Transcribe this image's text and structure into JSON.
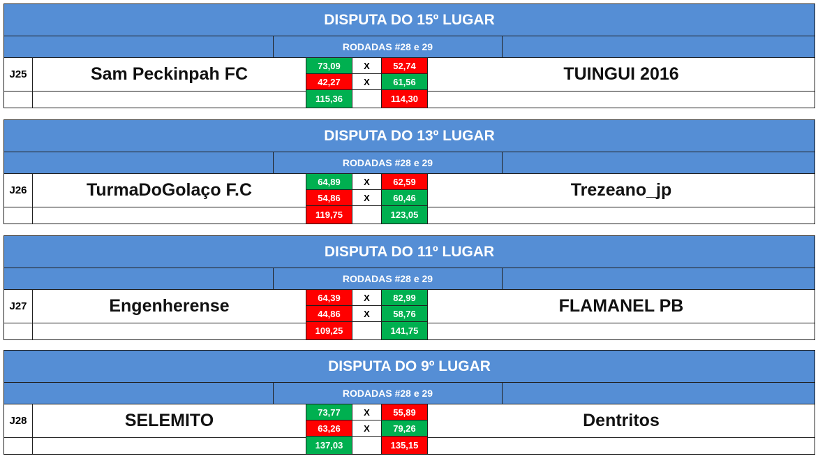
{
  "rounds_label": "RODADAS #28 e 29",
  "vs": "X",
  "colors": {
    "header": "#558ed5",
    "win": "#00b050",
    "lose": "#ff0000"
  },
  "blocks": [
    {
      "title": "DISPUTA DO 15º LUGAR",
      "code": "J25",
      "home": "Sam Peckinpah FC",
      "away": "TUINGUI 2016",
      "home_scores": [
        "73,09",
        "42,27",
        "115,36"
      ],
      "away_scores": [
        "52,74",
        "61,56",
        "114,30"
      ],
      "home_colors": [
        "green",
        "red",
        "green"
      ],
      "away_colors": [
        "red",
        "green",
        "red"
      ]
    },
    {
      "title": "DISPUTA DO 13º LUGAR",
      "code": "J26",
      "home": "TurmaDoGolaço F.C",
      "away": "Trezeano_jp",
      "home_scores": [
        "64,89",
        "54,86",
        "119,75"
      ],
      "away_scores": [
        "62,59",
        "60,46",
        "123,05"
      ],
      "home_colors": [
        "green",
        "red",
        "red"
      ],
      "away_colors": [
        "red",
        "green",
        "green"
      ]
    },
    {
      "title": "DISPUTA DO 11º LUGAR",
      "code": "J27",
      "home": "Engenherense",
      "away": "FLAMANEL PB",
      "home_scores": [
        "64,39",
        "44,86",
        "109,25"
      ],
      "away_scores": [
        "82,99",
        "58,76",
        "141,75"
      ],
      "home_colors": [
        "red",
        "red",
        "red"
      ],
      "away_colors": [
        "green",
        "green",
        "green"
      ]
    },
    {
      "title": "DISPUTA DO 9º LUGAR",
      "code": "J28",
      "home": "SELEMITO",
      "away": "Dentritos",
      "home_scores": [
        "73,77",
        "63,26",
        "137,03"
      ],
      "away_scores": [
        "55,89",
        "79,26",
        "135,15"
      ],
      "home_colors": [
        "green",
        "red",
        "green"
      ],
      "away_colors": [
        "red",
        "green",
        "red"
      ]
    }
  ]
}
